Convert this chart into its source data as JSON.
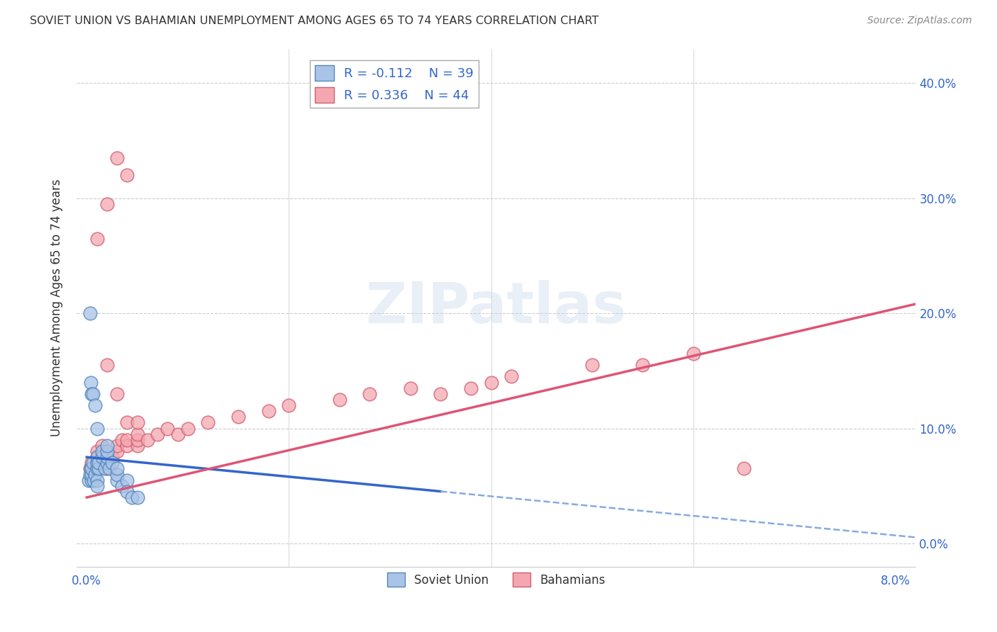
{
  "title": "SOVIET UNION VS BAHAMIAN UNEMPLOYMENT AMONG AGES 65 TO 74 YEARS CORRELATION CHART",
  "source": "Source: ZipAtlas.com",
  "ylabel": "Unemployment Among Ages 65 to 74 years",
  "xlim": [
    -0.001,
    0.082
  ],
  "ylim": [
    -0.02,
    0.43
  ],
  "xticks": [
    0.0,
    0.08
  ],
  "xminorticks": [
    0.02,
    0.04,
    0.06
  ],
  "yticks": [
    0.0,
    0.1,
    0.2,
    0.3,
    0.4
  ],
  "xtick_labels": [
    "0.0%",
    "8.0%"
  ],
  "ytick_labels_right": [
    "0.0%",
    "10.0%",
    "20.0%",
    "30.0%",
    "40.0%"
  ],
  "soviet_color": "#aac4e8",
  "soviet_edge_color": "#5588bb",
  "bahamas_color": "#f4a7b0",
  "bahamas_edge_color": "#d06070",
  "soviet_R": -0.112,
  "soviet_N": 39,
  "bahamas_R": 0.336,
  "bahamas_N": 44,
  "watermark_text": "ZIPatlas",
  "soviet_label": "Soviet Union",
  "bahamas_label": "Bahamians",
  "soviet_line_color": "#3366cc",
  "soviet_line_dashed_color": "#88aadd",
  "bahamas_line_color": "#dd5577",
  "soviet_points_x": [
    0.0002,
    0.0003,
    0.0004,
    0.0005,
    0.0005,
    0.0005,
    0.0006,
    0.0007,
    0.0008,
    0.001,
    0.001,
    0.001,
    0.001,
    0.001,
    0.0012,
    0.0012,
    0.0015,
    0.0015,
    0.0018,
    0.002,
    0.002,
    0.002,
    0.002,
    0.0022,
    0.0025,
    0.003,
    0.003,
    0.003,
    0.0035,
    0.004,
    0.004,
    0.0045,
    0.005,
    0.0003,
    0.0004,
    0.0005,
    0.0006,
    0.0008,
    0.001
  ],
  "soviet_points_y": [
    0.055,
    0.06,
    0.065,
    0.055,
    0.06,
    0.065,
    0.07,
    0.055,
    0.06,
    0.065,
    0.07,
    0.075,
    0.055,
    0.05,
    0.065,
    0.07,
    0.075,
    0.08,
    0.065,
    0.07,
    0.075,
    0.08,
    0.085,
    0.065,
    0.07,
    0.055,
    0.06,
    0.065,
    0.05,
    0.055,
    0.045,
    0.04,
    0.04,
    0.2,
    0.14,
    0.13,
    0.13,
    0.12,
    0.1
  ],
  "bahamas_points_x": [
    0.0003,
    0.0005,
    0.001,
    0.001,
    0.0015,
    0.002,
    0.002,
    0.0025,
    0.003,
    0.003,
    0.0035,
    0.004,
    0.004,
    0.005,
    0.005,
    0.005,
    0.006,
    0.007,
    0.008,
    0.009,
    0.01,
    0.012,
    0.015,
    0.018,
    0.02,
    0.025,
    0.028,
    0.032,
    0.035,
    0.038,
    0.04,
    0.042,
    0.05,
    0.055,
    0.06,
    0.065,
    0.001,
    0.002,
    0.003,
    0.004,
    0.002,
    0.003,
    0.004,
    0.005
  ],
  "bahamas_points_y": [
    0.065,
    0.07,
    0.075,
    0.08,
    0.085,
    0.065,
    0.07,
    0.075,
    0.08,
    0.085,
    0.09,
    0.085,
    0.09,
    0.085,
    0.09,
    0.095,
    0.09,
    0.095,
    0.1,
    0.095,
    0.1,
    0.105,
    0.11,
    0.115,
    0.12,
    0.125,
    0.13,
    0.135,
    0.13,
    0.135,
    0.14,
    0.145,
    0.155,
    0.155,
    0.165,
    0.065,
    0.265,
    0.295,
    0.335,
    0.32,
    0.155,
    0.13,
    0.105,
    0.105
  ],
  "soviet_line_x0": 0.0,
  "soviet_line_x_solid_end": 0.035,
  "soviet_line_x_dashed_end": 0.082,
  "soviet_line_y0": 0.075,
  "soviet_line_slope": -0.85,
  "bahamas_line_x0": 0.0,
  "bahamas_line_x_end": 0.082,
  "bahamas_line_y0": 0.04,
  "bahamas_line_slope": 2.05,
  "background_color": "#ffffff",
  "grid_color": "#cccccc"
}
